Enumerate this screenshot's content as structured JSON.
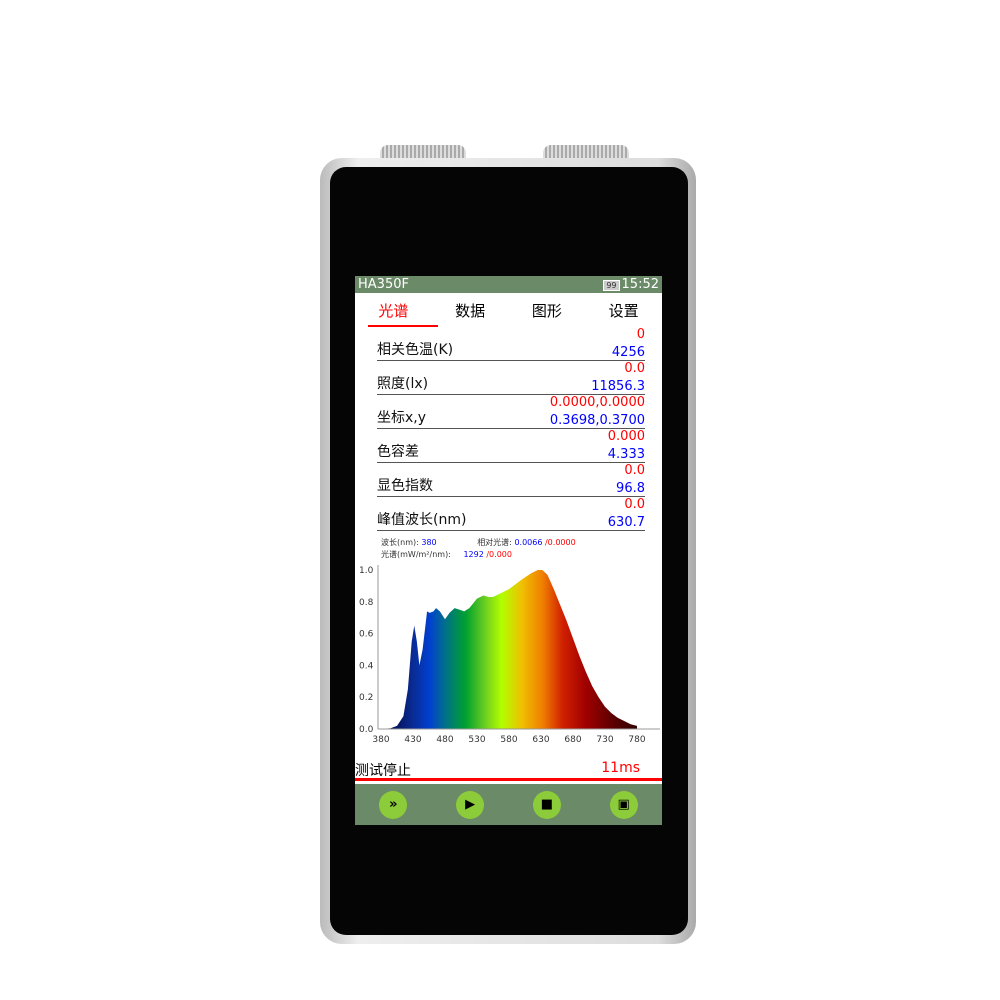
{
  "status": {
    "title": "HA350F",
    "battery": "99",
    "time": "15:52"
  },
  "tabs": [
    {
      "label": "光谱"
    },
    {
      "label": "数据"
    },
    {
      "label": "图形"
    },
    {
      "label": "设置"
    }
  ],
  "rows": [
    {
      "label": "相关色温(K)",
      "ref": "0",
      "value": "4256"
    },
    {
      "label": "照度(lx)",
      "ref": "0.0",
      "value": "11856.3"
    },
    {
      "label": "坐标x,y",
      "ref": "0.0000,0.0000",
      "value": "0.3698,0.3700"
    },
    {
      "label": "色容差",
      "ref": "0.000",
      "value": "4.333"
    },
    {
      "label": "显色指数",
      "ref": "0.0",
      "value": "96.8"
    },
    {
      "label": "峰值波长(nm)",
      "ref": "0.0",
      "value": "630.7"
    }
  ],
  "cursor": {
    "wl_label": "波长(nm):",
    "wl": "380",
    "rel_label": "相对光谱:",
    "rel": "0.0066",
    "rel_ref": "/0.0000",
    "spec_label": "光谱(mW/m²/nm):",
    "spec": "1292",
    "spec_ref": "/0.000"
  },
  "chart_data": {
    "type": "area",
    "xlim": [
      380,
      780
    ],
    "ylim": [
      0,
      1.0
    ],
    "xticks": [
      "380",
      "430",
      "480",
      "530",
      "580",
      "630",
      "680",
      "730",
      "780"
    ],
    "yticks": [
      "0.0",
      "0.2",
      "0.4",
      "0.6",
      "0.8",
      "1.0"
    ],
    "x": [
      380,
      395,
      405,
      415,
      422,
      428,
      432,
      436,
      440,
      445,
      452,
      456,
      462,
      466,
      472,
      480,
      487,
      495,
      503,
      510,
      518,
      530,
      540,
      548,
      555,
      565,
      580,
      600,
      615,
      625,
      632,
      640,
      650,
      660,
      670,
      680,
      690,
      700,
      710,
      720,
      730,
      740,
      750,
      760,
      770,
      780
    ],
    "y": [
      0,
      0.005,
      0.02,
      0.08,
      0.25,
      0.55,
      0.65,
      0.55,
      0.4,
      0.5,
      0.74,
      0.73,
      0.74,
      0.76,
      0.74,
      0.69,
      0.73,
      0.76,
      0.75,
      0.74,
      0.76,
      0.82,
      0.84,
      0.83,
      0.83,
      0.85,
      0.88,
      0.94,
      0.98,
      1.0,
      1.0,
      0.97,
      0.88,
      0.78,
      0.68,
      0.57,
      0.46,
      0.36,
      0.27,
      0.2,
      0.14,
      0.1,
      0.07,
      0.05,
      0.03,
      0.02
    ]
  },
  "footer": {
    "status": "测试停止",
    "time": "11ms"
  },
  "buttons": [
    {
      "icon": "fast-forward-icon",
      "glyph": "»"
    },
    {
      "icon": "play-icon",
      "glyph": "▶"
    },
    {
      "icon": "stop-icon",
      "glyph": "■"
    },
    {
      "icon": "save-icon",
      "glyph": "▣"
    }
  ]
}
